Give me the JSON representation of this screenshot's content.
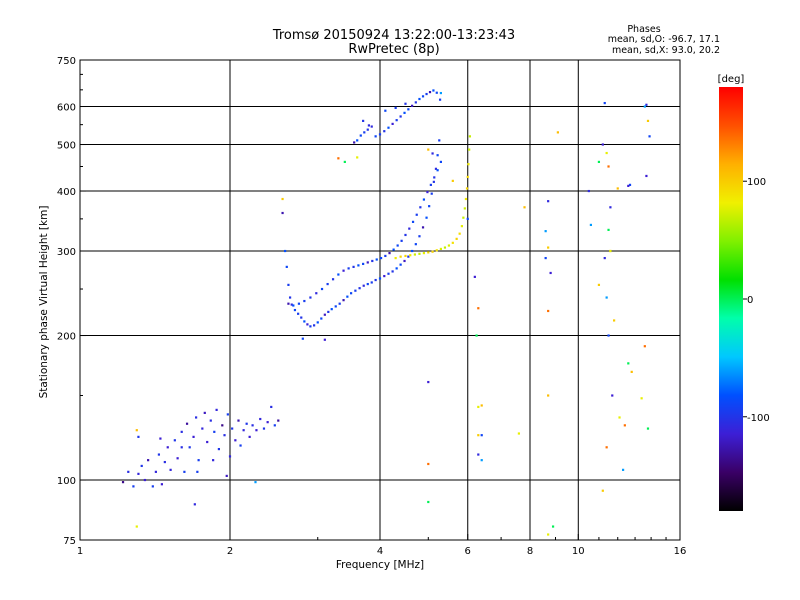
{
  "chart_data": {
    "type": "scatter",
    "title": "Tromsø 20150924 13:22:00-13:23:43",
    "subtitle": "RwPretec (8p)",
    "xlabel": "Frequency [MHz]",
    "ylabel": "Stationary phase Virtual Height [km]",
    "x_scale": "log",
    "y_scale": "log",
    "xlim": [
      1,
      16
    ],
    "ylim": [
      75,
      750
    ],
    "x_ticks": [
      1,
      2,
      4,
      6,
      8,
      10,
      16
    ],
    "x_tick_labels": [
      "1",
      "2",
      "4",
      "6",
      "8",
      "10",
      "16"
    ],
    "y_ticks": [
      75,
      100,
      200,
      300,
      400,
      500,
      600,
      750
    ],
    "y_tick_labels": [
      "75",
      "100",
      "200",
      "300",
      "400",
      "500",
      "600",
      "750"
    ],
    "grid_x": [
      2,
      4,
      6,
      8,
      10
    ],
    "grid_y": [
      100,
      200,
      300,
      400,
      500,
      600
    ],
    "grid": true,
    "stats": {
      "heading": "Phases",
      "line_o": "mean, sd,O: -96.7, 17.1",
      "line_x": "mean, sd,X:  93.0, 20.2"
    },
    "colorbar": {
      "label": "[deg]",
      "min": -180,
      "max": 180,
      "ticks": [
        100,
        0,
        -100
      ],
      "tick_labels": [
        "100",
        "0",
        "-100"
      ],
      "colormap": [
        "#000000",
        "#3a0066",
        "#3c1fd6",
        "#0050ff",
        "#00c8ff",
        "#00ffaa",
        "#00e000",
        "#80f000",
        "#f0f000",
        "#ffb000",
        "#ff5000",
        "#ff0000"
      ]
    },
    "series": [
      {
        "name": "",
        "points": [
          [
            1.22,
            99
          ],
          [
            1.25,
            104
          ],
          [
            1.28,
            97
          ],
          [
            1.31,
            103
          ],
          [
            1.33,
            107
          ],
          [
            1.35,
            100
          ],
          [
            1.37,
            110
          ],
          [
            1.4,
            97
          ],
          [
            1.42,
            104
          ],
          [
            1.44,
            113
          ],
          [
            1.46,
            98
          ],
          [
            1.48,
            109
          ],
          [
            1.5,
            117
          ],
          [
            1.52,
            105
          ],
          [
            1.55,
            121
          ],
          [
            1.57,
            111
          ],
          [
            1.6,
            126
          ],
          [
            1.62,
            104
          ],
          [
            1.64,
            131
          ],
          [
            1.66,
            117
          ],
          [
            1.69,
            123
          ],
          [
            1.71,
            135
          ],
          [
            1.73,
            110
          ],
          [
            1.76,
            128
          ],
          [
            1.78,
            138
          ],
          [
            1.8,
            120
          ],
          [
            1.83,
            133
          ],
          [
            1.86,
            126
          ],
          [
            1.88,
            140
          ],
          [
            1.9,
            116
          ],
          [
            1.93,
            130
          ],
          [
            1.95,
            124
          ],
          [
            1.98,
            137
          ],
          [
            2.0,
            112
          ],
          [
            2.02,
            128
          ],
          [
            2.05,
            121
          ],
          [
            2.08,
            133
          ],
          [
            2.1,
            118
          ],
          [
            2.13,
            127
          ],
          [
            2.16,
            131
          ],
          [
            2.19,
            123
          ],
          [
            2.22,
            130
          ],
          [
            2.26,
            127
          ],
          [
            2.3,
            134
          ],
          [
            2.34,
            128
          ],
          [
            2.38,
            132
          ],
          [
            2.42,
            142
          ],
          [
            2.46,
            130
          ],
          [
            2.5,
            133
          ],
          [
            1.31,
            123
          ],
          [
            1.45,
            122
          ],
          [
            1.6,
            117
          ],
          [
            1.72,
            104
          ],
          [
            1.85,
            110
          ],
          [
            1.97,
            102
          ]
        ]
      },
      {
        "name": "",
        "points": [
          [
            2.55,
            360
          ],
          [
            2.58,
            300
          ],
          [
            2.6,
            278
          ],
          [
            2.62,
            255
          ],
          [
            2.64,
            240
          ],
          [
            2.66,
            232
          ],
          [
            2.7,
            226
          ],
          [
            2.74,
            222
          ],
          [
            2.78,
            218
          ],
          [
            2.82,
            214
          ],
          [
            2.86,
            211
          ],
          [
            2.9,
            209
          ],
          [
            2.95,
            210
          ],
          [
            3.0,
            213
          ],
          [
            3.05,
            217
          ],
          [
            3.1,
            221
          ],
          [
            3.15,
            224
          ],
          [
            3.2,
            227
          ],
          [
            3.26,
            230
          ],
          [
            3.32,
            233
          ],
          [
            3.38,
            237
          ],
          [
            3.44,
            241
          ],
          [
            3.5,
            245
          ],
          [
            3.57,
            248
          ],
          [
            3.64,
            251
          ],
          [
            3.71,
            254
          ],
          [
            3.78,
            256
          ],
          [
            3.85,
            258
          ],
          [
            3.92,
            261
          ],
          [
            4.0,
            263
          ],
          [
            4.08,
            266
          ],
          [
            4.16,
            269
          ],
          [
            4.24,
            272
          ],
          [
            4.32,
            276
          ],
          [
            4.4,
            281
          ],
          [
            4.48,
            286
          ],
          [
            4.56,
            292
          ],
          [
            4.64,
            300
          ],
          [
            4.72,
            310
          ],
          [
            4.8,
            322
          ],
          [
            4.88,
            336
          ],
          [
            4.96,
            352
          ],
          [
            5.02,
            372
          ],
          [
            5.08,
            395
          ],
          [
            5.13,
            418
          ],
          [
            5.18,
            445
          ],
          [
            5.22,
            475
          ],
          [
            5.26,
            510
          ]
        ]
      },
      {
        "name": "",
        "points": [
          [
            2.62,
            233
          ],
          [
            2.68,
            231
          ],
          [
            2.75,
            233
          ],
          [
            2.82,
            236
          ],
          [
            2.9,
            240
          ],
          [
            2.98,
            245
          ],
          [
            3.06,
            250
          ],
          [
            3.14,
            256
          ],
          [
            3.22,
            262
          ],
          [
            3.3,
            268
          ],
          [
            3.38,
            273
          ],
          [
            3.46,
            276
          ],
          [
            3.54,
            278
          ],
          [
            3.62,
            280
          ],
          [
            3.7,
            282
          ],
          [
            3.78,
            284
          ],
          [
            3.86,
            286
          ],
          [
            3.94,
            288
          ],
          [
            4.02,
            290
          ],
          [
            4.1,
            293
          ],
          [
            4.18,
            297
          ],
          [
            4.26,
            302
          ],
          [
            4.34,
            308
          ],
          [
            4.42,
            315
          ],
          [
            4.5,
            324
          ],
          [
            4.58,
            334
          ],
          [
            4.66,
            345
          ],
          [
            4.74,
            357
          ],
          [
            4.82,
            370
          ],
          [
            4.9,
            384
          ],
          [
            4.98,
            398
          ],
          [
            5.06,
            412
          ],
          [
            5.14,
            427
          ],
          [
            5.22,
            442
          ],
          [
            5.3,
            460
          ]
        ]
      },
      {
        "name": "",
        "points": [
          [
            4.3,
            290
          ],
          [
            4.4,
            292
          ],
          [
            4.5,
            293
          ],
          [
            4.6,
            294
          ],
          [
            4.7,
            295
          ],
          [
            4.8,
            296
          ],
          [
            4.9,
            297
          ],
          [
            5.0,
            298
          ],
          [
            5.1,
            299
          ],
          [
            5.2,
            301
          ],
          [
            5.3,
            303
          ],
          [
            5.4,
            305
          ],
          [
            5.5,
            308
          ],
          [
            5.6,
            312
          ],
          [
            5.7,
            318
          ],
          [
            5.78,
            326
          ],
          [
            5.84,
            338
          ],
          [
            5.88,
            352
          ],
          [
            5.92,
            368
          ],
          [
            5.95,
            385
          ],
          [
            5.98,
            405
          ],
          [
            6.0,
            428
          ],
          [
            6.02,
            455
          ],
          [
            6.04,
            488
          ],
          [
            6.06,
            520
          ]
        ]
      },
      {
        "name": "",
        "points": [
          [
            3.55,
            505
          ],
          [
            3.6,
            510
          ],
          [
            3.66,
            522
          ],
          [
            3.72,
            530
          ],
          [
            3.78,
            537
          ],
          [
            3.85,
            545
          ],
          [
            3.92,
            520
          ],
          [
            4.0,
            525
          ],
          [
            4.08,
            533
          ],
          [
            4.16,
            542
          ],
          [
            4.24,
            552
          ],
          [
            4.32,
            562
          ],
          [
            4.4,
            572
          ],
          [
            4.48,
            582
          ],
          [
            4.56,
            592
          ],
          [
            4.64,
            602
          ],
          [
            4.72,
            612
          ],
          [
            4.8,
            622
          ],
          [
            4.88,
            630
          ],
          [
            4.96,
            637
          ],
          [
            5.04,
            643
          ],
          [
            5.12,
            648
          ],
          [
            5.2,
            641
          ],
          [
            5.28,
            620
          ],
          [
            3.7,
            560
          ],
          [
            3.8,
            548
          ],
          [
            4.1,
            588
          ],
          [
            4.3,
            596
          ],
          [
            4.5,
            608
          ]
        ]
      },
      {
        "name": "",
        "points": [
          [
            1.3,
            80
          ],
          [
            1.3,
            127
          ],
          [
            1.7,
            89
          ],
          [
            2.25,
            99
          ],
          [
            2.55,
            385
          ],
          [
            2.8,
            197
          ],
          [
            3.1,
            196
          ],
          [
            3.3,
            468
          ],
          [
            3.4,
            460
          ],
          [
            3.6,
            470
          ],
          [
            5.0,
            488
          ],
          [
            5.1,
            479
          ],
          [
            5.3,
            640
          ],
          [
            5.6,
            420
          ],
          [
            6.0,
            350
          ],
          [
            6.2,
            265
          ],
          [
            6.3,
            228
          ],
          [
            6.25,
            200
          ],
          [
            6.3,
            142
          ],
          [
            6.4,
            143
          ],
          [
            6.3,
            113
          ],
          [
            6.4,
            110
          ],
          [
            6.3,
            124
          ],
          [
            6.4,
            124
          ],
          [
            5.0,
            160
          ],
          [
            5.0,
            108
          ],
          [
            5.0,
            90
          ],
          [
            7.6,
            125
          ],
          [
            7.8,
            370
          ],
          [
            8.7,
            381
          ],
          [
            8.6,
            330
          ],
          [
            8.7,
            305
          ],
          [
            8.6,
            290
          ],
          [
            8.8,
            270
          ],
          [
            8.7,
            225
          ],
          [
            8.9,
            80
          ],
          [
            8.7,
            77
          ],
          [
            9.1,
            530
          ],
          [
            10.5,
            400
          ],
          [
            10.6,
            340
          ],
          [
            11.0,
            255
          ],
          [
            11.3,
            610
          ],
          [
            11.2,
            500
          ],
          [
            11.5,
            450
          ],
          [
            11.0,
            460
          ],
          [
            11.4,
            480
          ],
          [
            11.6,
            300
          ],
          [
            11.3,
            290
          ],
          [
            11.4,
            240
          ],
          [
            11.8,
            215
          ],
          [
            11.5,
            200
          ],
          [
            11.7,
            150
          ],
          [
            12.4,
            130
          ],
          [
            12.6,
            175
          ],
          [
            12.1,
            135
          ],
          [
            12.8,
            168
          ],
          [
            13.7,
            605
          ],
          [
            13.6,
            600
          ],
          [
            13.8,
            560
          ],
          [
            13.9,
            520
          ],
          [
            13.7,
            430
          ],
          [
            13.6,
            190
          ],
          [
            13.8,
            128
          ],
          [
            13.4,
            148
          ],
          [
            12.0,
            405
          ],
          [
            11.6,
            370
          ],
          [
            12.3,
            105
          ],
          [
            11.2,
            95
          ],
          [
            12.7,
            412
          ],
          [
            12.6,
            410
          ],
          [
            11.4,
            117
          ],
          [
            11.5,
            332
          ],
          [
            11.6,
            300
          ],
          [
            8.7,
            150
          ]
        ]
      }
    ]
  }
}
